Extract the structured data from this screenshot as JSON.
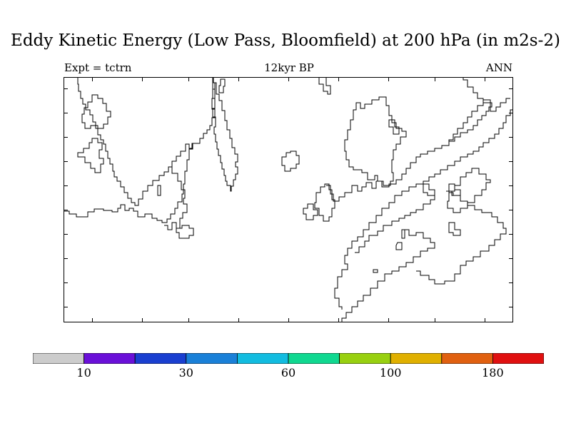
{
  "title": "Eddy Kinetic Energy (Low Pass, Bloomfield) at 200 hPa (in m2s-2)",
  "subtitle_left": "Expt = tctrn",
  "subtitle_center": "12kyr BP",
  "subtitle_right": "ANN",
  "colorbar": {
    "colors": [
      "#cccccc",
      "#6a10d8",
      "#1a3fd0",
      "#1a80d8",
      "#12bce0",
      "#10d890",
      "#98d010",
      "#e0b000",
      "#e06010",
      "#e01010"
    ],
    "labels": [
      "10",
      "30",
      "60",
      "100",
      "180"
    ]
  }
}
